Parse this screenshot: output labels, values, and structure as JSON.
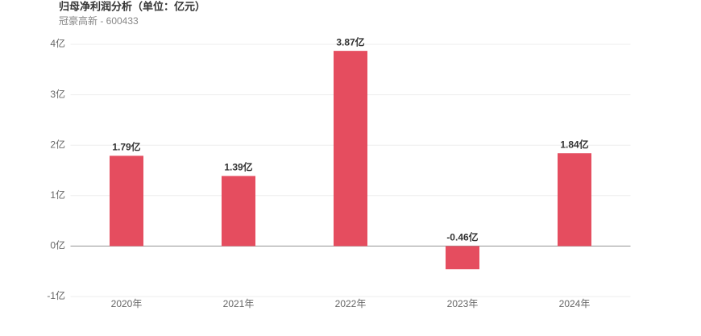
{
  "chart_data": {
    "type": "bar",
    "title": "归母净利润分析（单位：亿元）",
    "subtitle": "冠豪高新 - 600433",
    "categories": [
      "2020年",
      "2021年",
      "2022年",
      "2023年",
      "2024年"
    ],
    "values": [
      1.79,
      1.39,
      3.87,
      -0.46,
      1.84
    ],
    "value_labels": [
      "1.79亿",
      "1.39亿",
      "3.87亿",
      "-0.46亿",
      "1.84亿"
    ],
    "color": "#e54d5f",
    "ylim": [
      -1,
      4
    ],
    "yticks": [
      {
        "value": -1,
        "label": "-1亿"
      },
      {
        "value": 0,
        "label": "0亿"
      },
      {
        "value": 1,
        "label": "1亿"
      },
      {
        "value": 2,
        "label": "2亿"
      },
      {
        "value": 3,
        "label": "3亿"
      },
      {
        "value": 4,
        "label": "4亿"
      }
    ],
    "grid": true
  }
}
